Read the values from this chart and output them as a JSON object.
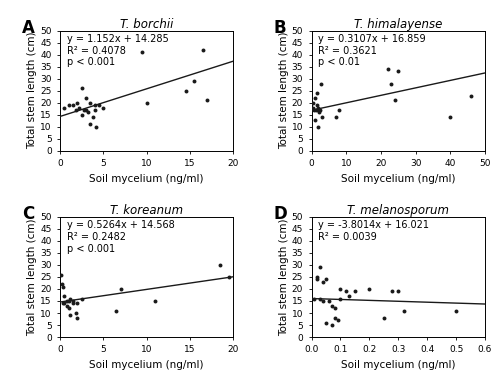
{
  "panels": [
    {
      "label": "A",
      "title": "T. borchii",
      "equation": "y = 1.152x + 14.285",
      "r2": "R² = 0.4078",
      "pval": "p < 0.001",
      "slope": 1.152,
      "intercept": 14.285,
      "xlim": [
        0,
        20
      ],
      "ylim": [
        0,
        50
      ],
      "xticks": [
        0,
        5,
        10,
        15,
        20
      ],
      "yticks": [
        0,
        5,
        10,
        15,
        20,
        25,
        30,
        35,
        40,
        45,
        50
      ],
      "xlabel": "Soil mycelium (ng/ml)",
      "ylabel": "Total stem length (cm)",
      "scatter_x": [
        0.5,
        1.0,
        1.5,
        1.8,
        2.0,
        2.2,
        2.5,
        2.5,
        2.8,
        3.0,
        3.0,
        3.2,
        3.5,
        3.5,
        3.8,
        4.0,
        4.0,
        4.2,
        4.5,
        5.0,
        9.5,
        10.0,
        14.5,
        15.5,
        16.5,
        17.0
      ],
      "scatter_y": [
        18,
        19,
        19,
        17,
        20,
        18,
        26,
        15,
        17,
        17,
        22,
        16,
        11,
        20,
        14,
        17,
        19,
        10,
        19,
        18,
        41,
        20,
        25,
        29,
        42,
        21
      ]
    },
    {
      "label": "B",
      "title": "T. himalayense",
      "equation": "y = 0.3107x + 16.859",
      "r2": "R² = 0.3621",
      "pval": "p < 0.01",
      "slope": 0.3107,
      "intercept": 16.859,
      "xlim": [
        0,
        50
      ],
      "ylim": [
        0,
        50
      ],
      "xticks": [
        0,
        10,
        20,
        30,
        40,
        50
      ],
      "yticks": [
        0,
        5,
        10,
        15,
        20,
        25,
        30,
        35,
        40,
        45,
        50
      ],
      "xlabel": "Soil mycelium (ng/ml)",
      "ylabel": "Total stem length (cm)",
      "scatter_x": [
        0.3,
        0.5,
        0.8,
        1.0,
        1.0,
        1.2,
        1.5,
        1.5,
        1.8,
        2.0,
        2.0,
        2.2,
        2.5,
        2.8,
        3.0,
        7.0,
        8.0,
        22.0,
        23.0,
        24.0,
        25.0,
        40.0,
        46.0
      ],
      "scatter_y": [
        18,
        20,
        17,
        22,
        13,
        17,
        19,
        24,
        18,
        17,
        10,
        16,
        17,
        28,
        14,
        14,
        17,
        34,
        28,
        21,
        33,
        14,
        23
      ]
    },
    {
      "label": "C",
      "title": "T. koreanum",
      "equation": "y = 0.5264x + 14.568",
      "r2": "R² = 0.2482",
      "pval": "p < 0.001",
      "slope": 0.5264,
      "intercept": 14.568,
      "xlim": [
        0,
        20
      ],
      "ylim": [
        0,
        50
      ],
      "xticks": [
        0,
        5,
        10,
        15,
        20
      ],
      "yticks": [
        0,
        5,
        10,
        15,
        20,
        25,
        30,
        35,
        40,
        45,
        50
      ],
      "xlabel": "Soil mycelium (ng/ml)",
      "ylabel": "Total stem length (cm)",
      "scatter_x": [
        0.1,
        0.2,
        0.3,
        0.3,
        0.5,
        0.5,
        0.8,
        0.8,
        1.0,
        1.0,
        1.2,
        1.2,
        1.5,
        1.5,
        1.8,
        2.0,
        2.0,
        2.5,
        6.5,
        7.0,
        11.0,
        18.5,
        19.5
      ],
      "scatter_y": [
        26,
        22,
        21,
        14,
        17,
        14,
        15,
        13,
        15,
        12,
        9,
        16,
        15,
        14,
        10,
        8,
        14,
        16,
        11,
        20,
        15,
        30,
        25
      ]
    },
    {
      "label": "D",
      "title": "T. melanosporum",
      "equation": "y = -3.8014x + 16.021",
      "r2": "R² = 0.0039",
      "pval": null,
      "slope": -3.8014,
      "intercept": 16.021,
      "xlim": [
        0,
        0.6
      ],
      "ylim": [
        0,
        50
      ],
      "xticks": [
        0,
        0.1,
        0.2,
        0.3,
        0.4,
        0.5,
        0.6
      ],
      "yticks": [
        0,
        5,
        10,
        15,
        20,
        25,
        30,
        35,
        40,
        45,
        50
      ],
      "xlabel": "Soil mycelium (ng/ml)",
      "ylabel": "Total stem length (cm)",
      "scatter_x": [
        0.01,
        0.02,
        0.02,
        0.03,
        0.03,
        0.04,
        0.04,
        0.05,
        0.05,
        0.06,
        0.07,
        0.07,
        0.08,
        0.08,
        0.09,
        0.1,
        0.1,
        0.12,
        0.13,
        0.15,
        0.2,
        0.25,
        0.28,
        0.3,
        0.32,
        0.5
      ],
      "scatter_y": [
        16,
        25,
        24,
        16,
        29,
        15,
        23,
        24,
        6,
        15,
        13,
        5,
        8,
        12,
        7,
        16,
        20,
        19,
        17,
        19,
        20,
        8,
        19,
        19,
        11,
        11
      ]
    }
  ],
  "fig_bgcolor": "#ffffff",
  "scatter_color": "#1a1a1a",
  "line_color": "#1a1a1a",
  "fontsize_title": 8.5,
  "fontsize_label": 7.5,
  "fontsize_tick": 6.5,
  "fontsize_eq": 7,
  "fontsize_panel_label": 12
}
